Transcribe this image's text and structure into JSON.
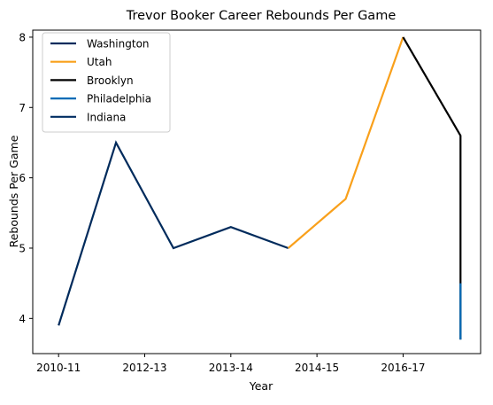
{
  "chart_data": {
    "type": "line",
    "title": "Trevor Booker Career Rebounds Per Game",
    "xlabel": "Year",
    "ylabel": "Rebounds Per Game",
    "x_tick_labels": [
      "2010-11",
      "2012-13",
      "2013-14",
      "2014-15",
      "2016-17"
    ],
    "x_tick_positions": [
      0,
      1.5,
      3,
      4.5,
      6
    ],
    "y_ticks": [
      4,
      5,
      6,
      7,
      8
    ],
    "xlim": [
      -0.45,
      7.35
    ],
    "ylim": [
      3.5,
      8.1
    ],
    "grid": false,
    "legend_position": "top-left",
    "series": [
      {
        "name": "Washington",
        "color": "#002B5C",
        "points": [
          [
            0,
            3.9
          ],
          [
            1,
            6.5
          ],
          [
            2,
            5.0
          ],
          [
            3,
            5.3
          ],
          [
            4,
            5.0
          ]
        ]
      },
      {
        "name": "Utah",
        "color": "#F9A01B",
        "points": [
          [
            4,
            5.0
          ],
          [
            5,
            5.7
          ],
          [
            6,
            8.0
          ]
        ]
      },
      {
        "name": "Brooklyn",
        "color": "#000000",
        "points": [
          [
            6,
            8.0
          ],
          [
            7,
            6.6
          ],
          [
            7,
            3.7
          ]
        ]
      },
      {
        "name": "Philadelphia",
        "color": "#006BB6",
        "points": [
          [
            7,
            4.5
          ],
          [
            7,
            3.7
          ]
        ]
      },
      {
        "name": "Indiana",
        "color": "#002D62",
        "points": [
          [
            7,
            3.7
          ]
        ]
      }
    ]
  }
}
